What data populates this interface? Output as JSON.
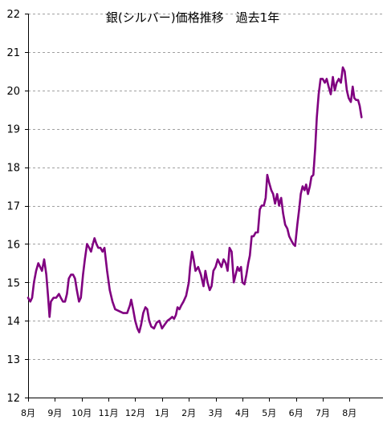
{
  "chart_data": {
    "type": "line",
    "title": "銀(シルバー)価格推移　過去1年",
    "xlabel": "",
    "ylabel": "",
    "ylim": [
      12,
      22
    ],
    "yticks": [
      12,
      13,
      14,
      15,
      16,
      17,
      18,
      19,
      20,
      21,
      22
    ],
    "grid": "horizontal dashed",
    "legend": "none",
    "line_color": "#800080",
    "xticks": [
      {
        "label": "8月",
        "x": 0
      },
      {
        "label": "9月",
        "x": 1
      },
      {
        "label": "10月",
        "x": 2
      },
      {
        "label": "11月",
        "x": 3
      },
      {
        "label": "12月",
        "x": 4
      },
      {
        "label": "1月",
        "x": 5
      },
      {
        "label": "2月",
        "x": 6
      },
      {
        "label": "3月",
        "x": 7
      },
      {
        "label": "4月",
        "x": 8
      },
      {
        "label": "5月",
        "x": 9
      },
      {
        "label": "6月",
        "x": 10
      },
      {
        "label": "7月",
        "x": 11
      },
      {
        "label": "8月",
        "x": 12
      }
    ],
    "xlim": [
      0,
      13.25
    ],
    "series": [
      {
        "values": [
          [
            0.0,
            14.6
          ],
          [
            0.08,
            14.5
          ],
          [
            0.15,
            14.6
          ],
          [
            0.22,
            15.0
          ],
          [
            0.3,
            15.3
          ],
          [
            0.38,
            15.5
          ],
          [
            0.45,
            15.4
          ],
          [
            0.52,
            15.3
          ],
          [
            0.6,
            15.6
          ],
          [
            0.68,
            15.2
          ],
          [
            0.75,
            14.6
          ],
          [
            0.8,
            14.1
          ],
          [
            0.85,
            14.5
          ],
          [
            0.95,
            14.6
          ],
          [
            1.05,
            14.6
          ],
          [
            1.15,
            14.7
          ],
          [
            1.22,
            14.6
          ],
          [
            1.3,
            14.5
          ],
          [
            1.38,
            14.5
          ],
          [
            1.45,
            14.7
          ],
          [
            1.52,
            15.1
          ],
          [
            1.6,
            15.2
          ],
          [
            1.68,
            15.2
          ],
          [
            1.75,
            15.1
          ],
          [
            1.82,
            14.8
          ],
          [
            1.9,
            14.5
          ],
          [
            1.97,
            14.6
          ],
          [
            2.05,
            15.2
          ],
          [
            2.12,
            15.6
          ],
          [
            2.2,
            16.0
          ],
          [
            2.28,
            15.9
          ],
          [
            2.35,
            15.8
          ],
          [
            2.42,
            16.0
          ],
          [
            2.48,
            16.15
          ],
          [
            2.55,
            16.0
          ],
          [
            2.62,
            15.9
          ],
          [
            2.7,
            15.9
          ],
          [
            2.78,
            15.8
          ],
          [
            2.85,
            15.9
          ],
          [
            2.95,
            15.3
          ],
          [
            3.05,
            14.8
          ],
          [
            3.15,
            14.5
          ],
          [
            3.25,
            14.3
          ],
          [
            3.4,
            14.25
          ],
          [
            3.55,
            14.2
          ],
          [
            3.7,
            14.2
          ],
          [
            3.8,
            14.4
          ],
          [
            3.85,
            14.55
          ],
          [
            3.92,
            14.3
          ],
          [
            4.0,
            14.0
          ],
          [
            4.08,
            13.8
          ],
          [
            4.15,
            13.7
          ],
          [
            4.22,
            13.9
          ],
          [
            4.3,
            14.2
          ],
          [
            4.38,
            14.35
          ],
          [
            4.45,
            14.3
          ],
          [
            4.52,
            14.0
          ],
          [
            4.6,
            13.85
          ],
          [
            4.7,
            13.8
          ],
          [
            4.8,
            13.95
          ],
          [
            4.9,
            14.0
          ],
          [
            5.0,
            13.8
          ],
          [
            5.1,
            13.9
          ],
          [
            5.2,
            14.0
          ],
          [
            5.3,
            14.05
          ],
          [
            5.38,
            14.1
          ],
          [
            5.45,
            14.05
          ],
          [
            5.52,
            14.15
          ],
          [
            5.58,
            14.35
          ],
          [
            5.65,
            14.3
          ],
          [
            5.72,
            14.4
          ],
          [
            5.8,
            14.5
          ],
          [
            5.9,
            14.65
          ],
          [
            6.0,
            15.0
          ],
          [
            6.05,
            15.4
          ],
          [
            6.12,
            15.8
          ],
          [
            6.18,
            15.6
          ],
          [
            6.25,
            15.3
          ],
          [
            6.35,
            15.4
          ],
          [
            6.45,
            15.2
          ],
          [
            6.55,
            14.9
          ],
          [
            6.62,
            15.3
          ],
          [
            6.7,
            15.0
          ],
          [
            6.78,
            14.8
          ],
          [
            6.85,
            14.9
          ],
          [
            6.92,
            15.3
          ],
          [
            7.0,
            15.4
          ],
          [
            7.08,
            15.6
          ],
          [
            7.15,
            15.5
          ],
          [
            7.22,
            15.4
          ],
          [
            7.3,
            15.6
          ],
          [
            7.38,
            15.5
          ],
          [
            7.45,
            15.3
          ],
          [
            7.52,
            15.9
          ],
          [
            7.6,
            15.8
          ],
          [
            7.68,
            15.0
          ],
          [
            7.75,
            15.2
          ],
          [
            7.82,
            15.4
          ],
          [
            7.88,
            15.3
          ],
          [
            7.95,
            15.4
          ],
          [
            8.0,
            15.0
          ],
          [
            8.08,
            14.95
          ],
          [
            8.15,
            15.2
          ],
          [
            8.22,
            15.5
          ],
          [
            8.28,
            15.7
          ],
          [
            8.35,
            16.2
          ],
          [
            8.42,
            16.2
          ],
          [
            8.5,
            16.3
          ],
          [
            8.58,
            16.3
          ],
          [
            8.65,
            16.9
          ],
          [
            8.72,
            17.0
          ],
          [
            8.8,
            17.0
          ],
          [
            8.87,
            17.2
          ],
          [
            8.93,
            17.8
          ],
          [
            9.0,
            17.6
          ],
          [
            9.08,
            17.4
          ],
          [
            9.15,
            17.3
          ],
          [
            9.22,
            17.05
          ],
          [
            9.3,
            17.3
          ],
          [
            9.37,
            17.0
          ],
          [
            9.45,
            17.2
          ],
          [
            9.52,
            16.8
          ],
          [
            9.6,
            16.5
          ],
          [
            9.68,
            16.4
          ],
          [
            9.75,
            16.2
          ],
          [
            9.82,
            16.1
          ],
          [
            9.9,
            16.0
          ],
          [
            9.97,
            15.95
          ],
          [
            10.05,
            16.5
          ],
          [
            10.12,
            16.9
          ],
          [
            10.18,
            17.3
          ],
          [
            10.25,
            17.5
          ],
          [
            10.32,
            17.4
          ],
          [
            10.38,
            17.55
          ],
          [
            10.45,
            17.3
          ],
          [
            10.52,
            17.5
          ],
          [
            10.58,
            17.75
          ],
          [
            10.65,
            17.8
          ],
          [
            10.72,
            18.5
          ],
          [
            10.78,
            19.3
          ],
          [
            10.85,
            19.9
          ],
          [
            10.92,
            20.3
          ],
          [
            11.0,
            20.3
          ],
          [
            11.08,
            20.2
          ],
          [
            11.15,
            20.3
          ],
          [
            11.22,
            20.1
          ],
          [
            11.3,
            19.9
          ],
          [
            11.38,
            20.35
          ],
          [
            11.45,
            20.0
          ],
          [
            11.52,
            20.2
          ],
          [
            11.6,
            20.3
          ],
          [
            11.68,
            20.2
          ],
          [
            11.75,
            20.6
          ],
          [
            11.82,
            20.5
          ],
          [
            11.9,
            20.0
          ],
          [
            11.97,
            19.8
          ],
          [
            12.05,
            19.7
          ],
          [
            12.12,
            20.1
          ],
          [
            12.18,
            19.8
          ],
          [
            12.25,
            19.75
          ],
          [
            12.32,
            19.75
          ],
          [
            12.38,
            19.6
          ],
          [
            12.45,
            19.3
          ]
        ]
      }
    ]
  }
}
